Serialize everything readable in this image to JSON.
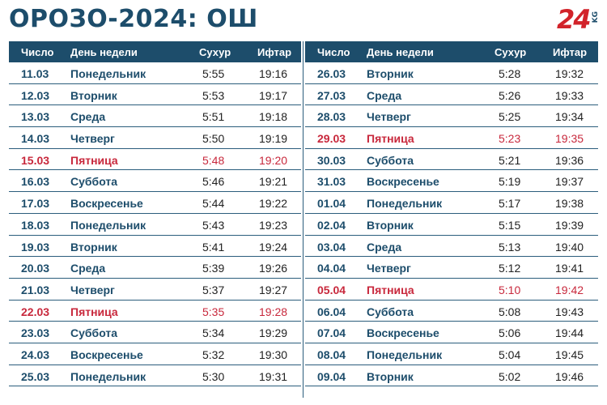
{
  "title": "ОРОЗО-2024: ОШ",
  "logo": {
    "number": "24",
    "suffix": "KG"
  },
  "headers": {
    "date": "Число",
    "day": "День недели",
    "suhur": "Сухур",
    "iftar": "Ифтар"
  },
  "colors": {
    "primary": "#1d4d6b",
    "friday": "#c8283c"
  },
  "left_rows": [
    {
      "date": "11.03",
      "day": "Понедельник",
      "suhur": "5:55",
      "iftar": "19:16",
      "friday": false
    },
    {
      "date": "12.03",
      "day": "Вторник",
      "suhur": "5:53",
      "iftar": "19:17",
      "friday": false
    },
    {
      "date": "13.03",
      "day": "Среда",
      "suhur": "5:51",
      "iftar": "19:18",
      "friday": false
    },
    {
      "date": "14.03",
      "day": "Четверг",
      "suhur": "5:50",
      "iftar": "19:19",
      "friday": false
    },
    {
      "date": "15.03",
      "day": "Пятница",
      "suhur": "5:48",
      "iftar": "19:20",
      "friday": true
    },
    {
      "date": "16.03",
      "day": "Суббота",
      "suhur": "5:46",
      "iftar": "19:21",
      "friday": false
    },
    {
      "date": "17.03",
      "day": "Воскресенье",
      "suhur": "5:44",
      "iftar": "19:22",
      "friday": false
    },
    {
      "date": "18.03",
      "day": "Понедельник",
      "suhur": "5:43",
      "iftar": "19:23",
      "friday": false
    },
    {
      "date": "19.03",
      "day": "Вторник",
      "suhur": "5:41",
      "iftar": "19:24",
      "friday": false
    },
    {
      "date": "20.03",
      "day": "Среда",
      "suhur": "5:39",
      "iftar": "19:26",
      "friday": false
    },
    {
      "date": "21.03",
      "day": "Четверг",
      "suhur": "5:37",
      "iftar": "19:27",
      "friday": false
    },
    {
      "date": "22.03",
      "day": "Пятница",
      "suhur": "5:35",
      "iftar": "19:28",
      "friday": true
    },
    {
      "date": "23.03",
      "day": "Суббота",
      "suhur": "5:34",
      "iftar": "19:29",
      "friday": false
    },
    {
      "date": "24.03",
      "day": "Воскресенье",
      "suhur": "5:32",
      "iftar": "19:30",
      "friday": false
    },
    {
      "date": "25.03",
      "day": "Понедельник",
      "suhur": "5:30",
      "iftar": "19:31",
      "friday": false
    }
  ],
  "right_rows": [
    {
      "date": "26.03",
      "day": "Вторник",
      "suhur": "5:28",
      "iftar": "19:32",
      "friday": false
    },
    {
      "date": "27.03",
      "day": "Среда",
      "suhur": "5:26",
      "iftar": "19:33",
      "friday": false
    },
    {
      "date": "28.03",
      "day": "Четверг",
      "suhur": "5:25",
      "iftar": "19:34",
      "friday": false
    },
    {
      "date": "29.03",
      "day": "Пятница",
      "suhur": "5:23",
      "iftar": "19:35",
      "friday": true
    },
    {
      "date": "30.03",
      "day": "Суббота",
      "suhur": "5:21",
      "iftar": "19:36",
      "friday": false
    },
    {
      "date": "31.03",
      "day": "Воскресенье",
      "suhur": "5:19",
      "iftar": "19:37",
      "friday": false
    },
    {
      "date": "01.04",
      "day": "Понедельник",
      "suhur": "5:17",
      "iftar": "19:38",
      "friday": false
    },
    {
      "date": "02.04",
      "day": "Вторник",
      "suhur": "5:15",
      "iftar": "19:39",
      "friday": false
    },
    {
      "date": "03.04",
      "day": "Среда",
      "suhur": "5:13",
      "iftar": "19:40",
      "friday": false
    },
    {
      "date": "04.04",
      "day": "Четверг",
      "suhur": "5:12",
      "iftar": "19:41",
      "friday": false
    },
    {
      "date": "05.04",
      "day": "Пятница",
      "suhur": "5:10",
      "iftar": "19:42",
      "friday": true
    },
    {
      "date": "06.04",
      "day": "Суббота",
      "suhur": "5:08",
      "iftar": "19:43",
      "friday": false
    },
    {
      "date": "07.04",
      "day": "Воскресенье",
      "suhur": "5:06",
      "iftar": "19:44",
      "friday": false
    },
    {
      "date": "08.04",
      "day": "Понедельник",
      "suhur": "5:04",
      "iftar": "19:45",
      "friday": false
    },
    {
      "date": "09.04",
      "day": "Вторник",
      "suhur": "5:02",
      "iftar": "19:46",
      "friday": false
    }
  ]
}
